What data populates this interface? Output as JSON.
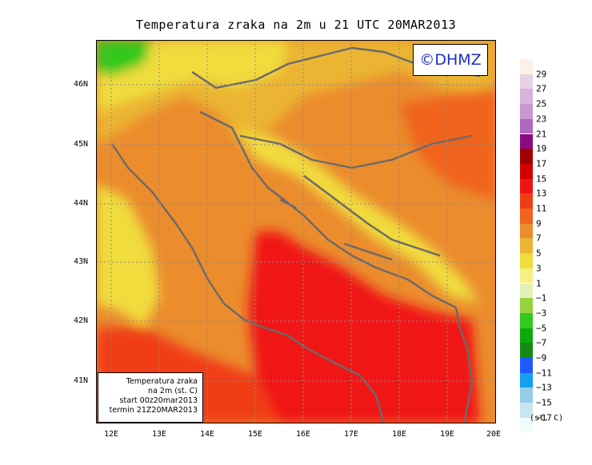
{
  "title": "Temperatura zraka na 2m u 21 UTC 20MAR2013",
  "logo": "©DHMZ",
  "info": {
    "line1": "Temperatura zraka",
    "line2": "na 2m (st. C)",
    "line3": "start 00z20mar2013",
    "line4": "termin 21Z20MAR2013"
  },
  "lat_labels": [
    "46N",
    "45N",
    "44N",
    "43N",
    "42N",
    "41N"
  ],
  "lon_labels": [
    "12E",
    "13E",
    "14E",
    "15E",
    "16E",
    "17E",
    "18E",
    "19E",
    "20E"
  ],
  "legend": {
    "colors": [
      "#fdf0e6",
      "#e8d2e6",
      "#d7b4da",
      "#c896d0",
      "#b168c0",
      "#8c0a82",
      "#a00000",
      "#d20000",
      "#f01414",
      "#f03c14",
      "#f0641e",
      "#eb8c2d",
      "#ebb432",
      "#f0dc3c",
      "#f5f082",
      "#e1f0b4",
      "#96d23c",
      "#32c81e",
      "#0aaa0a",
      "#148c14",
      "#1e5aff",
      "#14a0f0",
      "#96cde6",
      "#c8e6f0",
      "#f0fcfc"
    ],
    "labels": [
      "29",
      "27",
      "25",
      "23",
      "21",
      "19",
      "17",
      "15",
      "13",
      "11",
      "9",
      "7",
      "5",
      "3",
      "1",
      "−1",
      "−3",
      "−5",
      "−7",
      "−9",
      "−11",
      "−13",
      "−15",
      "−17"
    ],
    "unit": "(st. C)"
  }
}
